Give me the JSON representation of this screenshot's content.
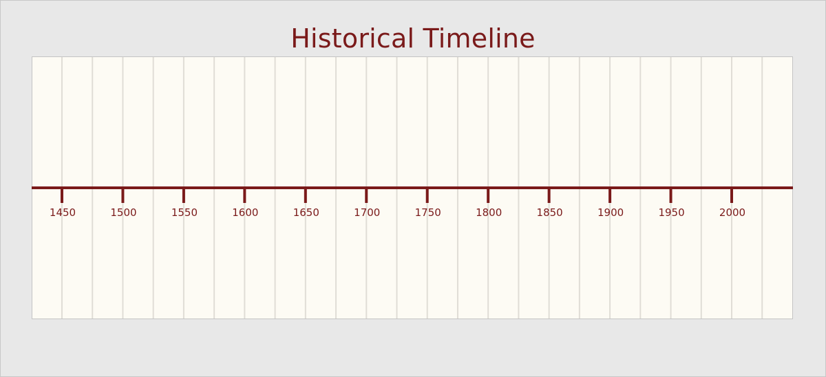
{
  "title": "Historical Timeline",
  "colors": {
    "accent": "#7a1a1a",
    "panel_background": "#fdfbf4",
    "page_background": "#e8e8e8",
    "gridline": "#e0ddd6"
  },
  "chart_data": {
    "type": "timeline",
    "title": "Historical Timeline",
    "xlabel": "",
    "ylabel": "",
    "grid": true,
    "tick_values": [
      1450,
      1500,
      1550,
      1600,
      1650,
      1700,
      1750,
      1800,
      1850,
      1900,
      1950,
      2000
    ],
    "tick_labels": [
      "1450",
      "1500",
      "1550",
      "1600",
      "1650",
      "1700",
      "1750",
      "1800",
      "1850",
      "1900",
      "1950",
      "2000"
    ],
    "xlim": [
      1425,
      2050
    ],
    "grid_interval_years": 25,
    "events": []
  }
}
